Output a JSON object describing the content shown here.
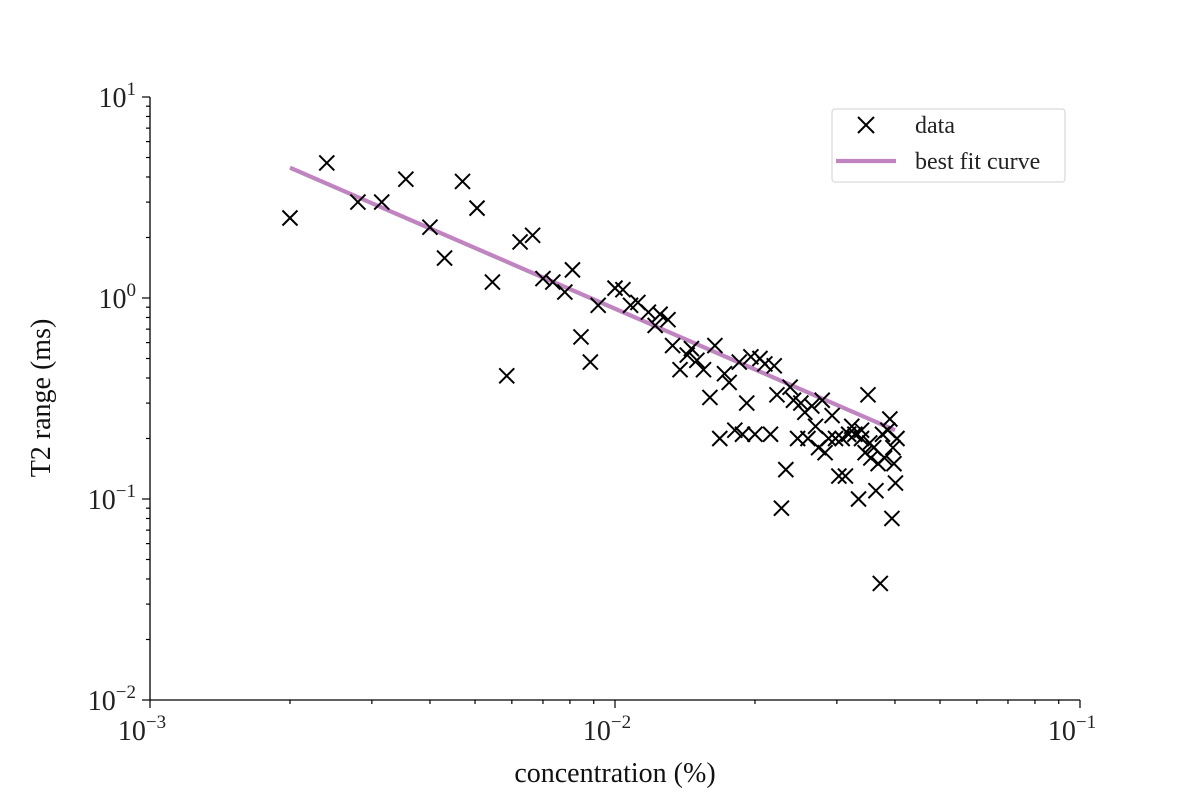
{
  "chart_data": {
    "type": "scatter",
    "xscale": "log",
    "yscale": "log",
    "xlim": [
      0.001,
      0.1
    ],
    "ylim": [
      0.01,
      10
    ],
    "xlabel": "concentration (%)",
    "ylabel": "T2 range (ms)",
    "xticks": [
      {
        "base": "10",
        "exp": "−3",
        "value": 0.001
      },
      {
        "base": "10",
        "exp": "−2",
        "value": 0.01
      },
      {
        "base": "10",
        "exp": "−1",
        "value": 0.1
      }
    ],
    "yticks": [
      {
        "base": "10",
        "exp": "−2",
        "value": 0.01
      },
      {
        "base": "10",
        "exp": "−1",
        "value": 0.1
      },
      {
        "base": "10",
        "exp": "0",
        "value": 1
      },
      {
        "base": "10",
        "exp": "1",
        "value": 10
      }
    ],
    "legend": {
      "position": "top-right",
      "entries": [
        {
          "label": "data",
          "marker": "x",
          "color": "#000000"
        },
        {
          "label": "best fit curve",
          "marker": "line",
          "color": "#c084c0"
        }
      ]
    },
    "series": [
      {
        "name": "data",
        "kind": "scatter",
        "marker": "x",
        "color": "#000000",
        "points": [
          [
            0.002,
            2.5
          ],
          [
            0.0024,
            4.7
          ],
          [
            0.0028,
            3.0
          ],
          [
            0.00315,
            3.0
          ],
          [
            0.00355,
            3.9
          ],
          [
            0.004,
            2.25
          ],
          [
            0.0043,
            1.58
          ],
          [
            0.0047,
            3.8
          ],
          [
            0.00505,
            2.8
          ],
          [
            0.00545,
            1.2
          ],
          [
            0.00585,
            0.41
          ],
          [
            0.00625,
            1.9
          ],
          [
            0.00665,
            2.05
          ],
          [
            0.007,
            1.25
          ],
          [
            0.00735,
            1.2
          ],
          [
            0.0078,
            1.07
          ],
          [
            0.0081,
            1.38
          ],
          [
            0.00845,
            0.64
          ],
          [
            0.00885,
            0.48
          ],
          [
            0.0092,
            0.92
          ],
          [
            0.01,
            1.12
          ],
          [
            0.0104,
            1.1
          ],
          [
            0.0108,
            0.92
          ],
          [
            0.0112,
            0.95
          ],
          [
            0.0118,
            0.85
          ],
          [
            0.0122,
            0.73
          ],
          [
            0.0125,
            0.83
          ],
          [
            0.013,
            0.78
          ],
          [
            0.0133,
            0.58
          ],
          [
            0.0138,
            0.44
          ],
          [
            0.0143,
            0.52
          ],
          [
            0.0146,
            0.56
          ],
          [
            0.015,
            0.49
          ],
          [
            0.0155,
            0.44
          ],
          [
            0.016,
            0.32
          ],
          [
            0.0164,
            0.58
          ],
          [
            0.0168,
            0.2
          ],
          [
            0.0172,
            0.42
          ],
          [
            0.0176,
            0.38
          ],
          [
            0.0181,
            0.22
          ],
          [
            0.0185,
            0.48
          ],
          [
            0.0188,
            0.21
          ],
          [
            0.0192,
            0.3
          ],
          [
            0.0196,
            0.51
          ],
          [
            0.02,
            0.21
          ],
          [
            0.0205,
            0.5
          ],
          [
            0.021,
            0.47
          ],
          [
            0.0216,
            0.21
          ],
          [
            0.022,
            0.46
          ],
          [
            0.0223,
            0.33
          ],
          [
            0.0228,
            0.09
          ],
          [
            0.0233,
            0.14
          ],
          [
            0.0238,
            0.36
          ],
          [
            0.0242,
            0.31
          ],
          [
            0.0247,
            0.2
          ],
          [
            0.0251,
            0.3
          ],
          [
            0.0256,
            0.27
          ],
          [
            0.026,
            0.2
          ],
          [
            0.0265,
            0.29
          ],
          [
            0.027,
            0.23
          ],
          [
            0.0274,
            0.18
          ],
          [
            0.0279,
            0.31
          ],
          [
            0.0283,
            0.17
          ],
          [
            0.0288,
            0.2
          ],
          [
            0.0293,
            0.26
          ],
          [
            0.0298,
            0.2
          ],
          [
            0.0303,
            0.13
          ],
          [
            0.0308,
            0.2
          ],
          [
            0.0313,
            0.13
          ],
          [
            0.0318,
            0.21
          ],
          [
            0.0323,
            0.23
          ],
          [
            0.0328,
            0.21
          ],
          [
            0.0334,
            0.1
          ],
          [
            0.0339,
            0.22
          ],
          [
            0.0345,
            0.17
          ],
          [
            0.035,
            0.33
          ],
          [
            0.0355,
            0.16
          ],
          [
            0.036,
            0.18
          ],
          [
            0.0364,
            0.11
          ],
          [
            0.0368,
            0.15
          ],
          [
            0.0372,
            0.038
          ],
          [
            0.0376,
            0.21
          ],
          [
            0.038,
            0.16
          ],
          [
            0.0386,
            0.22
          ],
          [
            0.039,
            0.25
          ],
          [
            0.0394,
            0.08
          ],
          [
            0.0398,
            0.15
          ],
          [
            0.0401,
            0.12
          ],
          [
            0.0404,
            0.2
          ],
          [
            0.0396,
            0.18
          ],
          [
            0.0353,
            0.19
          ],
          [
            0.0339,
            0.2
          ]
        ]
      },
      {
        "name": "best fit curve",
        "kind": "line",
        "color": "#c084c0",
        "points": [
          [
            0.002,
            4.45
          ],
          [
            0.04,
            0.22
          ]
        ]
      }
    ]
  }
}
